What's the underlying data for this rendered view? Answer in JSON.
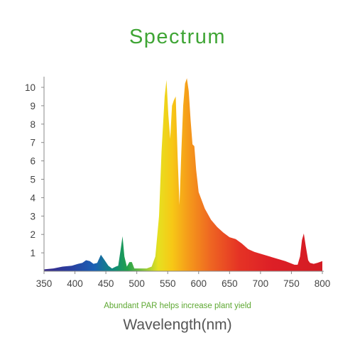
{
  "title": "Spectrum",
  "caption": "Abundant PAR helps increase plant yield",
  "colors": {
    "title": "#3fa535",
    "caption": "#5ea832",
    "axis": "#888888"
  },
  "chart_data": {
    "type": "area",
    "title": "Spectrum",
    "xlabel": "Wavelength(nm)",
    "ylabel": "",
    "xlim": [
      350,
      800
    ],
    "ylim": [
      0,
      10.5
    ],
    "grid": false,
    "legend": "none",
    "x_ticks": [
      350,
      400,
      450,
      500,
      550,
      600,
      650,
      700,
      750,
      800
    ],
    "y_ticks": [
      1,
      2,
      3,
      4,
      5,
      6,
      7,
      8,
      9,
      10
    ],
    "series": [
      {
        "x": [
          350,
          365,
          380,
          395,
          405,
          412,
          418,
          424,
          430,
          436,
          442,
          448,
          454,
          460,
          466,
          470,
          474,
          477,
          480,
          484,
          488,
          492,
          496,
          500,
          508,
          516,
          524,
          530,
          536,
          540,
          545,
          548,
          551,
          554,
          557,
          560,
          563,
          566,
          569,
          572,
          575,
          578,
          581,
          584,
          587,
          590,
          593,
          596,
          600,
          610,
          620,
          630,
          640,
          650,
          660,
          670,
          680,
          690,
          700,
          720,
          740,
          755,
          760,
          764,
          767,
          770,
          773,
          777,
          780,
          786,
          792,
          800
        ],
        "y": [
          0.1,
          0.15,
          0.25,
          0.3,
          0.4,
          0.45,
          0.6,
          0.55,
          0.4,
          0.45,
          0.9,
          0.6,
          0.3,
          0.15,
          0.25,
          0.3,
          1.2,
          1.9,
          0.8,
          0.25,
          0.5,
          0.5,
          0.15,
          0.15,
          0.15,
          0.15,
          0.25,
          0.8,
          3.0,
          6.5,
          9.5,
          10.4,
          8.5,
          7.2,
          9.0,
          9.3,
          9.5,
          6.2,
          3.6,
          6.5,
          9.0,
          10.2,
          10.5,
          9.8,
          8.2,
          6.9,
          6.8,
          5.5,
          4.3,
          3.4,
          2.8,
          2.4,
          2.1,
          1.85,
          1.75,
          1.5,
          1.2,
          1.05,
          0.95,
          0.75,
          0.55,
          0.35,
          0.35,
          0.8,
          1.7,
          2.05,
          1.4,
          0.6,
          0.45,
          0.4,
          0.45,
          0.55
        ]
      }
    ]
  }
}
